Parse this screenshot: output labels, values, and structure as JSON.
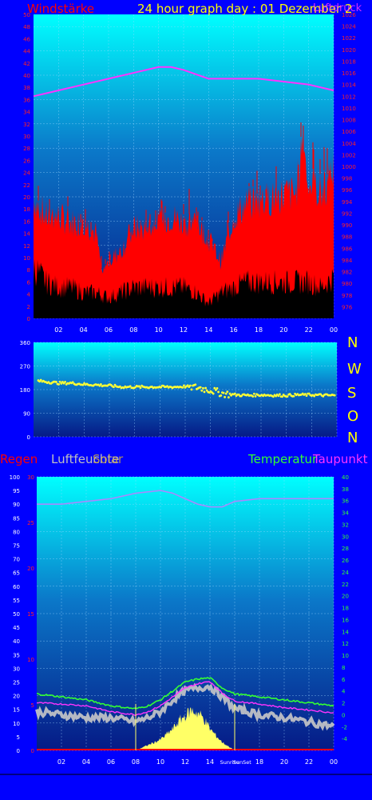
{
  "colors": {
    "page_bg": "#0000ff",
    "wind": "#ff0000",
    "gust_shadow": "#000000",
    "pressure": "#ff33ff",
    "direction": "#ffff33",
    "temperature": "#33ff33",
    "dewpoint": "#ff33ff",
    "humidity": "#d0d0d0",
    "rain": "#ff0000",
    "solar": "#ffff66",
    "title_yellow": "#ffff00",
    "tick_red": "#ff2222",
    "tick_white": "#ffffff",
    "tick_green": "#33ff33"
  },
  "header": {
    "wind_label": "Windstärke",
    "title": "24 hour graph day : 01 Dezember 2",
    "pressure_label_partial": "Luftdruck"
  },
  "compass": [
    "N",
    "W",
    "S",
    "O",
    "N"
  ],
  "legend2": {
    "rain": "Regen",
    "humidity": "Luftfeuchte",
    "solar": "Solar",
    "temperature": "Temperatur",
    "dewpoint": "Taupunkt"
  },
  "marker_labels": {
    "sunrise": "Sunrise",
    "sunset": "SunSet"
  },
  "chart_data": [
    {
      "type": "area",
      "title": "24 hour graph day : 01 Dezember 2",
      "x_ticks": [
        "02",
        "04",
        "06",
        "08",
        "10",
        "12",
        "14",
        "16",
        "18",
        "20",
        "22",
        "00"
      ],
      "y_left": {
        "label": "Windstärke",
        "range": [
          0,
          50
        ],
        "ticks": [
          0,
          2,
          4,
          6,
          8,
          10,
          12,
          14,
          16,
          18,
          20,
          22,
          24,
          26,
          28,
          30,
          32,
          34,
          36,
          38,
          40,
          42,
          44,
          46,
          48,
          50
        ]
      },
      "y_right": {
        "range": [
          974,
          1026
        ],
        "ticks": [
          976,
          978,
          980,
          982,
          984,
          986,
          988,
          990,
          992,
          994,
          996,
          998,
          1000,
          1002,
          1004,
          1006,
          1008,
          1010,
          1012,
          1014,
          1016,
          1018,
          1020,
          1022,
          1024,
          1026
        ]
      },
      "series": [
        {
          "name": "Windstärke",
          "kind": "gust",
          "x": [
            0,
            1,
            2,
            3,
            4,
            5,
            5.5,
            6,
            7,
            8,
            9,
            10,
            11,
            12,
            13,
            14,
            15,
            16,
            17,
            18,
            19,
            20,
            21,
            21.5,
            22,
            23,
            24
          ],
          "values": [
            21,
            18,
            18,
            17,
            17,
            15,
            8,
            10,
            12,
            16,
            16,
            17,
            18,
            17,
            17,
            14,
            10,
            18,
            20,
            21,
            21,
            22,
            22,
            32,
            24,
            22,
            26
          ]
        },
        {
          "name": "Windstärke",
          "kind": "average",
          "x": [
            0,
            1,
            2,
            3,
            4,
            5,
            6,
            7,
            8,
            9,
            10,
            11,
            12,
            13,
            14,
            15,
            16,
            17,
            18,
            19,
            20,
            21,
            22,
            23,
            24
          ],
          "values": [
            10,
            7,
            6,
            6,
            5,
            5,
            4,
            5,
            6,
            6,
            6,
            6,
            6,
            5,
            3,
            5,
            6,
            7,
            7,
            7,
            7,
            7,
            7,
            6,
            8
          ]
        },
        {
          "name": "Luftdruck",
          "kind": "pressure",
          "axis": "right",
          "x": [
            0,
            2,
            4,
            6,
            8,
            10,
            11,
            12,
            14,
            16,
            18,
            20,
            22,
            24
          ],
          "values": [
            1012,
            1013,
            1014,
            1015,
            1016,
            1017,
            1017,
            1016.5,
            1015,
            1015,
            1015,
            1014.5,
            1014,
            1013
          ]
        }
      ],
      "grid": true
    },
    {
      "type": "scatter",
      "x_ticks": [
        "02",
        "04",
        "06",
        "08",
        "10",
        "12",
        "14",
        "16",
        "18",
        "20",
        "22",
        "00"
      ],
      "y_left": {
        "range": [
          0,
          360
        ],
        "ticks": [
          0,
          90,
          180,
          270,
          360
        ]
      },
      "series": [
        {
          "name": "direction",
          "x": [
            0,
            1,
            2,
            3,
            4,
            5,
            6,
            7,
            8,
            9,
            10,
            11,
            12,
            13,
            14,
            15,
            16,
            17,
            18,
            19,
            20,
            21,
            22,
            23,
            24
          ],
          "values": [
            215,
            210,
            205,
            205,
            200,
            198,
            195,
            190,
            190,
            190,
            190,
            190,
            192,
            188,
            178,
            165,
            160,
            158,
            160,
            158,
            158,
            160,
            160,
            158,
            158
          ]
        }
      ],
      "grid": true
    },
    {
      "type": "line",
      "x_ticks": [
        "02",
        "04",
        "06",
        "08",
        "10",
        "12",
        "14",
        "Sunrise",
        "SunSet",
        "18",
        "20",
        "22",
        "00"
      ],
      "y_left": {
        "label": "Luftfeuchte",
        "range": [
          0,
          100
        ],
        "ticks": [
          0,
          5,
          10,
          15,
          20,
          25,
          30,
          35,
          40,
          45,
          50,
          55,
          60,
          65,
          70,
          75,
          80,
          85,
          90,
          95,
          100
        ]
      },
      "y_left_inner": {
        "label": "Regen",
        "range": [
          0,
          30
        ],
        "ticks": [
          0,
          5,
          10,
          15,
          20,
          25,
          30
        ]
      },
      "y_right": {
        "label": "Temperatur",
        "range": [
          -6,
          40
        ],
        "ticks": [
          -4,
          -2,
          0,
          2,
          4,
          6,
          8,
          10,
          12,
          14,
          16,
          18,
          20,
          22,
          24,
          26,
          28,
          30,
          32,
          34,
          36,
          38,
          40
        ]
      },
      "series": [
        {
          "name": "Luftfeuchte",
          "x": [
            0,
            2,
            4,
            6,
            7,
            8,
            10,
            11,
            12,
            13,
            14,
            15,
            16,
            18,
            20,
            22,
            24
          ],
          "values": [
            90,
            90,
            91,
            92,
            93,
            94,
            95,
            94,
            92,
            90,
            89,
            89,
            91,
            92,
            92,
            92,
            92
          ]
        },
        {
          "name": "Temperatur",
          "axis": "right",
          "x": [
            0,
            2,
            4,
            6,
            8,
            9,
            10,
            11,
            12,
            13,
            14,
            15,
            16,
            18,
            20,
            22,
            24
          ],
          "values": [
            3.5,
            3,
            2.5,
            1.5,
            1,
            1.5,
            2.5,
            4,
            5.5,
            6,
            6.2,
            4.5,
            3.5,
            3,
            2.5,
            2,
            1.5
          ]
        },
        {
          "name": "Taupunkt",
          "axis": "right",
          "x": [
            0,
            2,
            4,
            6,
            8,
            9,
            10,
            11,
            12,
            13,
            14,
            15,
            16,
            18,
            20,
            22,
            24
          ],
          "values": [
            2,
            1.8,
            1.5,
            0.5,
            0,
            0.5,
            1.5,
            3,
            4.5,
            5.2,
            5.6,
            3.6,
            2.3,
            1.8,
            1.2,
            0.8,
            0.3
          ]
        },
        {
          "name": "Solar",
          "kind": "solar",
          "x": [
            8,
            9,
            10,
            11,
            11.5,
            12,
            12.5,
            13,
            13.5,
            14,
            15,
            16
          ],
          "values": [
            0,
            2,
            4,
            8,
            11,
            13,
            15,
            14,
            12,
            8,
            3,
            0
          ]
        },
        {
          "name": "feels",
          "kind": "band",
          "axis": "right",
          "x": [
            0,
            2,
            4,
            6,
            8,
            9,
            10,
            11,
            12,
            13,
            14,
            15,
            16,
            18,
            20,
            22,
            24
          ],
          "values": [
            0.5,
            0,
            -0.5,
            -0.5,
            -1.2,
            -0.5,
            0.5,
            2.5,
            4,
            4.5,
            4.8,
            3,
            1,
            0,
            -0.5,
            -1.2,
            -2
          ]
        },
        {
          "name": "Regen",
          "values": [
            0
          ]
        }
      ],
      "grid": true
    }
  ]
}
